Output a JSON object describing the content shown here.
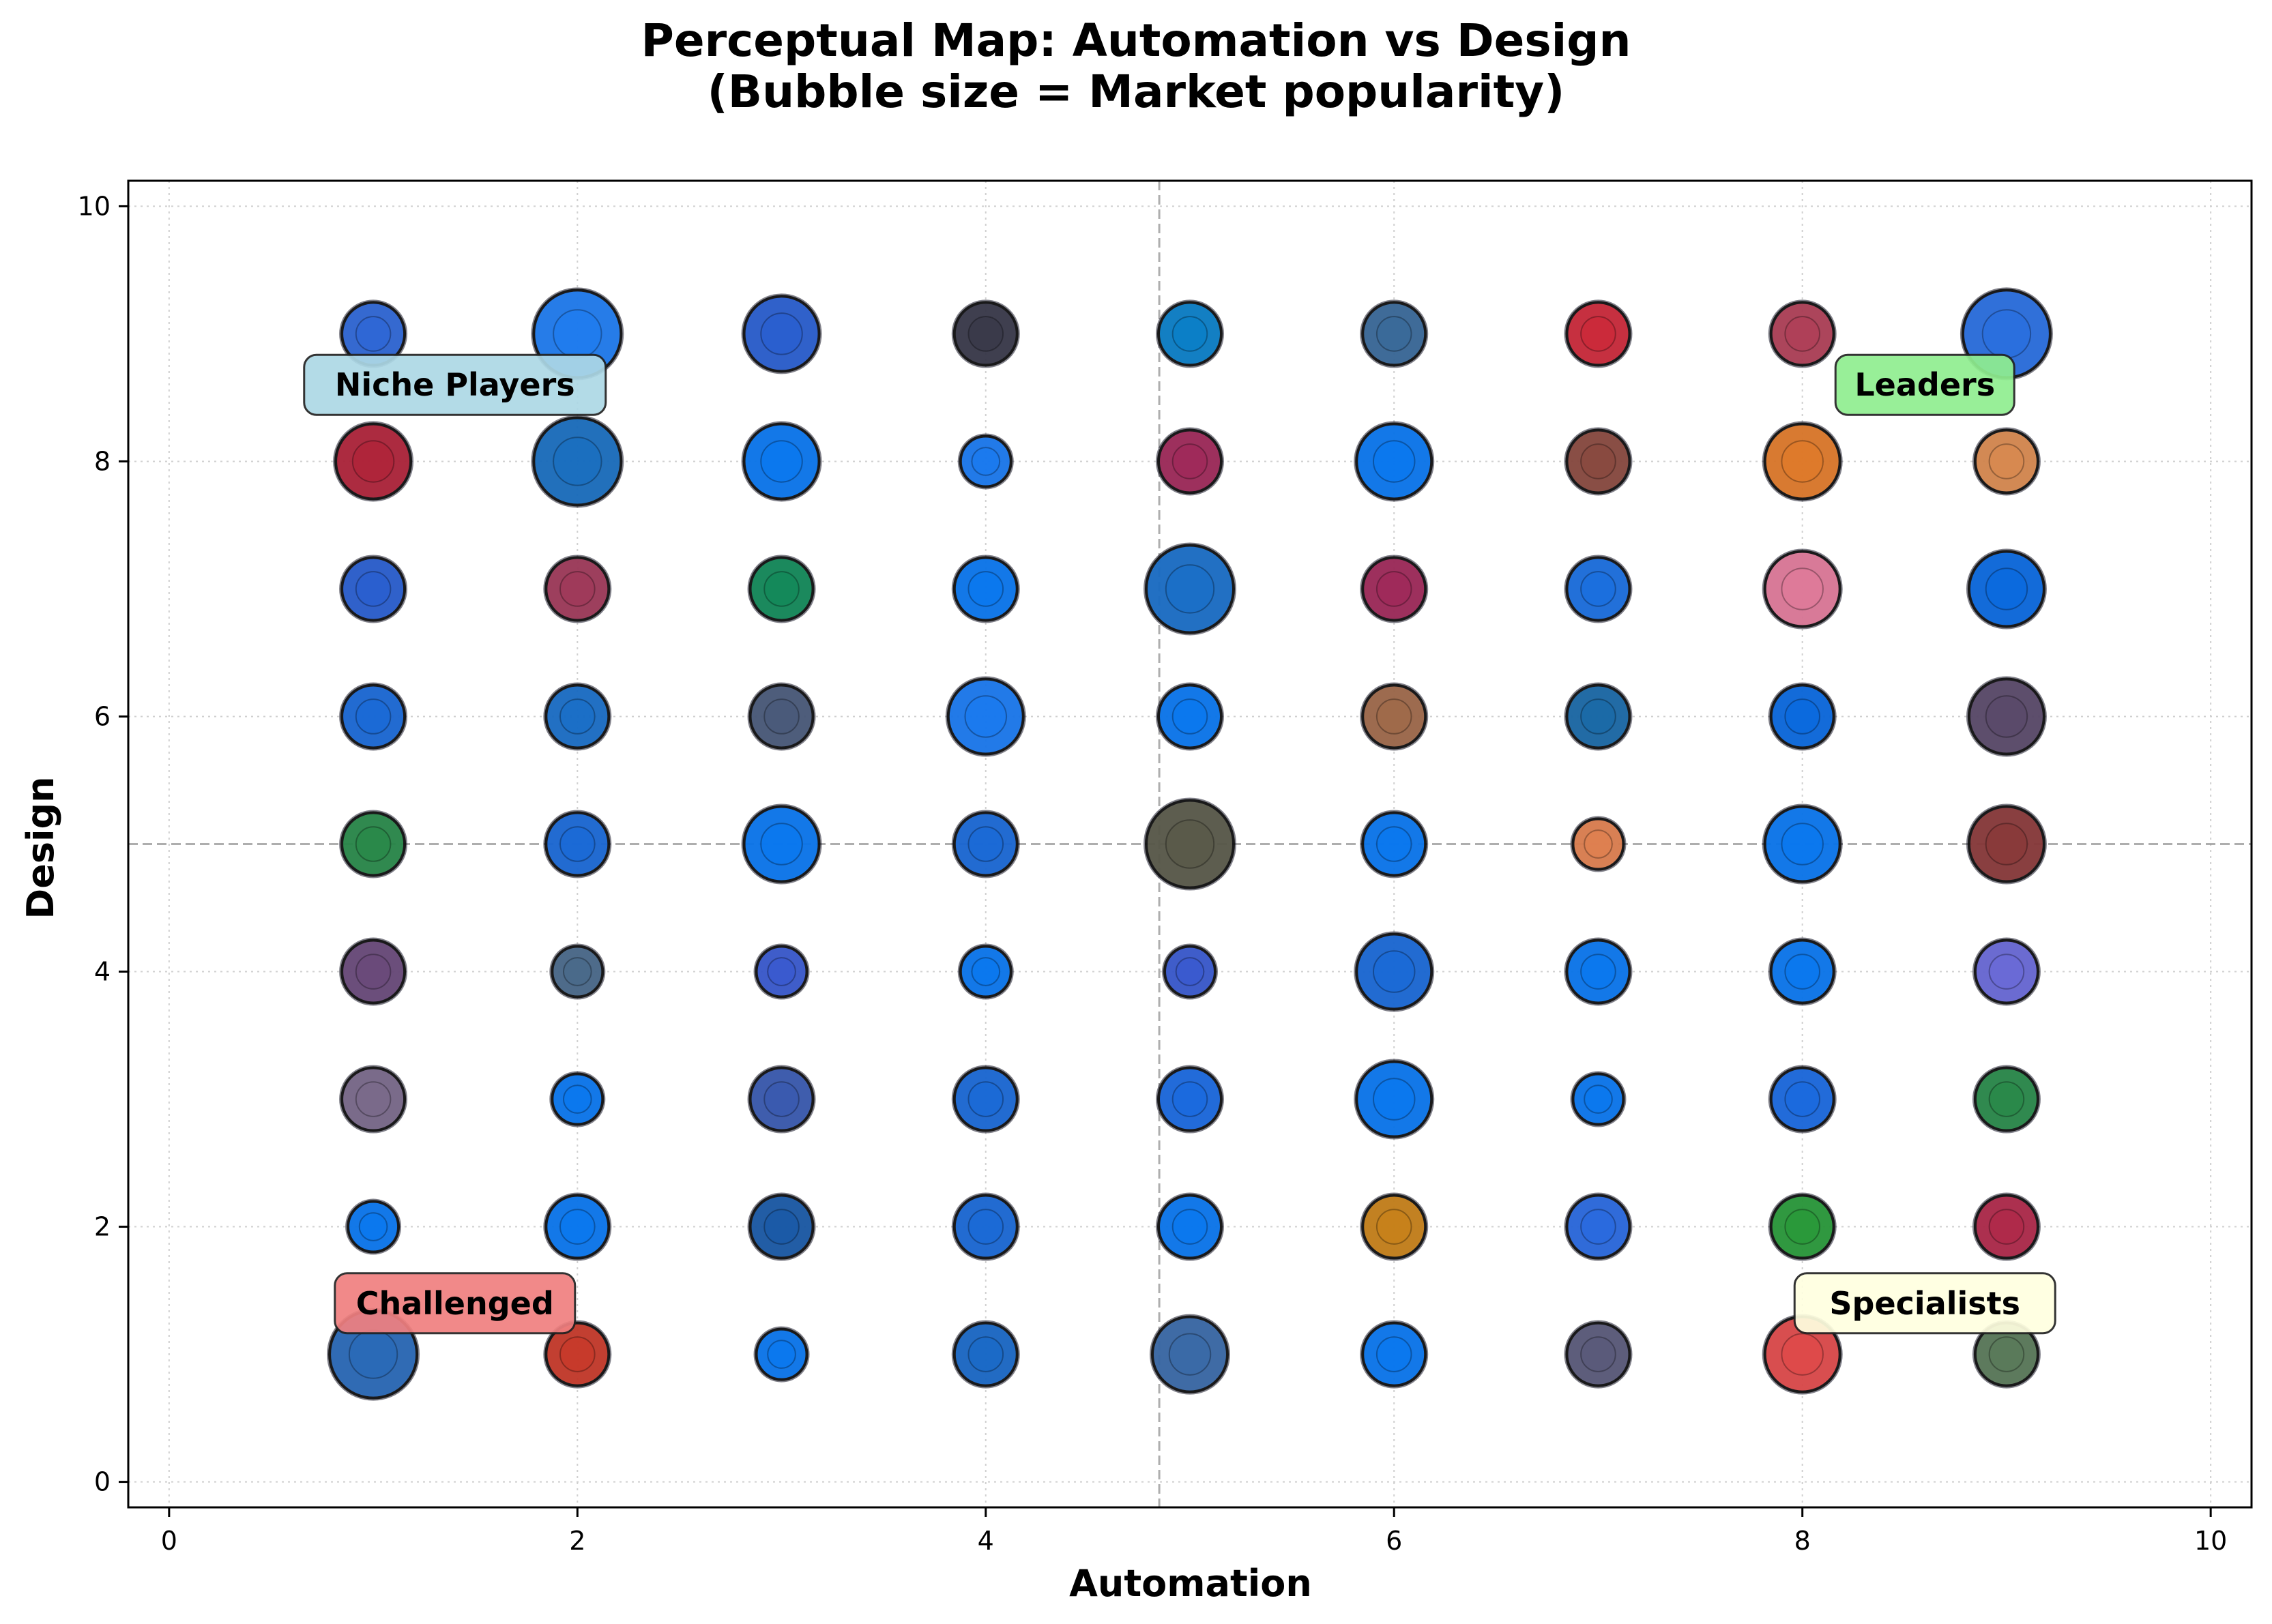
{
  "chart_data": {
    "type": "scatter",
    "title_line1": "Perceptual Map: Automation vs Design",
    "title_line2": "(Bubble size = Market popularity)",
    "xlabel": "Automation",
    "ylabel": "Design",
    "xlim": [
      -0.2,
      10.2
    ],
    "ylim": [
      -0.2,
      10.2
    ],
    "xticks": [
      "0",
      "2",
      "4",
      "6",
      "8",
      "10"
    ],
    "yticks": [
      "0",
      "2",
      "4",
      "6",
      "8",
      "10"
    ],
    "grid": true,
    "reference_lines": {
      "x": 4.85,
      "y": 5
    },
    "quadrant_labels": [
      {
        "text": "Niche Players",
        "x": 1.4,
        "y": 8.6,
        "color": "#add8e6"
      },
      {
        "text": "Leaders",
        "x": 8.6,
        "y": 8.6,
        "color": "#90ee90"
      },
      {
        "text": "Challenged",
        "x": 1.4,
        "y": 1.4,
        "color": "#f08080"
      },
      {
        "text": "Specialists",
        "x": 8.6,
        "y": 1.4,
        "color": "#ffffe0"
      }
    ],
    "points": [
      {
        "x": 1,
        "y": 9,
        "size": 2,
        "color": "#2f67d6"
      },
      {
        "x": 2,
        "y": 9,
        "size": 4,
        "color": "#1f7cf0"
      },
      {
        "x": 3,
        "y": 9,
        "size": 3,
        "color": "#2a5fd0"
      },
      {
        "x": 4,
        "y": 9,
        "size": 2,
        "color": "#3a3a4a"
      },
      {
        "x": 5,
        "y": 9,
        "size": 2,
        "color": "#0a7fc8"
      },
      {
        "x": 6,
        "y": 9,
        "size": 2,
        "color": "#3a6a9a"
      },
      {
        "x": 7,
        "y": 9,
        "size": 2,
        "color": "#cc2a3a"
      },
      {
        "x": 8,
        "y": 9,
        "size": 2,
        "color": "#b04058"
      },
      {
        "x": 9,
        "y": 9,
        "size": 4,
        "color": "#2a6fe0"
      },
      {
        "x": 1,
        "y": 8,
        "size": 3,
        "color": "#b0243a"
      },
      {
        "x": 2,
        "y": 8,
        "size": 4,
        "color": "#1a6fc0"
      },
      {
        "x": 3,
        "y": 8,
        "size": 3,
        "color": "#0a78f0"
      },
      {
        "x": 4,
        "y": 8,
        "size": 1,
        "color": "#1a7af0"
      },
      {
        "x": 5,
        "y": 8,
        "size": 2,
        "color": "#a02a5a"
      },
      {
        "x": 6,
        "y": 8,
        "size": 3,
        "color": "#0a78f0"
      },
      {
        "x": 7,
        "y": 8,
        "size": 2,
        "color": "#8a4a40"
      },
      {
        "x": 8,
        "y": 8,
        "size": 3,
        "color": "#e07a2a"
      },
      {
        "x": 9,
        "y": 8,
        "size": 2,
        "color": "#d98a50"
      },
      {
        "x": 1,
        "y": 7,
        "size": 2,
        "color": "#2a5fd0"
      },
      {
        "x": 2,
        "y": 7,
        "size": 2,
        "color": "#a03a5a"
      },
      {
        "x": 3,
        "y": 7,
        "size": 2,
        "color": "#138a5a"
      },
      {
        "x": 4,
        "y": 7,
        "size": 2,
        "color": "#0a78f0"
      },
      {
        "x": 5,
        "y": 7,
        "size": 4,
        "color": "#1a6fc8"
      },
      {
        "x": 6,
        "y": 7,
        "size": 2,
        "color": "#a02a5a"
      },
      {
        "x": 7,
        "y": 7,
        "size": 2,
        "color": "#1a6fe0"
      },
      {
        "x": 8,
        "y": 7,
        "size": 3,
        "color": "#e07a9a"
      },
      {
        "x": 9,
        "y": 7,
        "size": 3,
        "color": "#0a6ae0"
      },
      {
        "x": 1,
        "y": 6,
        "size": 2,
        "color": "#1a6ad8"
      },
      {
        "x": 2,
        "y": 6,
        "size": 2,
        "color": "#1a6fc8"
      },
      {
        "x": 3,
        "y": 6,
        "size": 2,
        "color": "#4a5a7a"
      },
      {
        "x": 4,
        "y": 6,
        "size": 3,
        "color": "#1a7af0"
      },
      {
        "x": 5,
        "y": 6,
        "size": 2,
        "color": "#0a78f0"
      },
      {
        "x": 6,
        "y": 6,
        "size": 2,
        "color": "#a06a4a"
      },
      {
        "x": 7,
        "y": 6,
        "size": 2,
        "color": "#1a6aa8"
      },
      {
        "x": 8,
        "y": 6,
        "size": 2,
        "color": "#0a6ae0"
      },
      {
        "x": 9,
        "y": 6,
        "size": 3,
        "color": "#5a4a6a"
      },
      {
        "x": 1,
        "y": 5,
        "size": 2,
        "color": "#2a8a4a"
      },
      {
        "x": 2,
        "y": 5,
        "size": 2,
        "color": "#1a6ad8"
      },
      {
        "x": 3,
        "y": 5,
        "size": 3,
        "color": "#0a78f0"
      },
      {
        "x": 4,
        "y": 5,
        "size": 2,
        "color": "#1a6ad8"
      },
      {
        "x": 5,
        "y": 5,
        "size": 4,
        "color": "#5a5a4a"
      },
      {
        "x": 6,
        "y": 5,
        "size": 2,
        "color": "#0a78f0"
      },
      {
        "x": 7,
        "y": 5,
        "size": 1,
        "color": "#e08050"
      },
      {
        "x": 8,
        "y": 5,
        "size": 3,
        "color": "#0a78f0"
      },
      {
        "x": 9,
        "y": 5,
        "size": 3,
        "color": "#8a3a3a"
      },
      {
        "x": 1,
        "y": 4,
        "size": 2,
        "color": "#6a4a7a"
      },
      {
        "x": 2,
        "y": 4,
        "size": 1,
        "color": "#4a6a8a"
      },
      {
        "x": 3,
        "y": 4,
        "size": 1,
        "color": "#3a5ad0"
      },
      {
        "x": 4,
        "y": 4,
        "size": 1,
        "color": "#0a78f0"
      },
      {
        "x": 5,
        "y": 4,
        "size": 1,
        "color": "#3a5ad0"
      },
      {
        "x": 6,
        "y": 4,
        "size": 3,
        "color": "#1a6ad8"
      },
      {
        "x": 7,
        "y": 4,
        "size": 2,
        "color": "#0a78f0"
      },
      {
        "x": 8,
        "y": 4,
        "size": 2,
        "color": "#0a78f0"
      },
      {
        "x": 9,
        "y": 4,
        "size": 2,
        "color": "#6a6ad8"
      },
      {
        "x": 1,
        "y": 3,
        "size": 2,
        "color": "#7a6a8a"
      },
      {
        "x": 2,
        "y": 3,
        "size": 1,
        "color": "#0a78f0"
      },
      {
        "x": 3,
        "y": 3,
        "size": 2,
        "color": "#3a5ab0"
      },
      {
        "x": 4,
        "y": 3,
        "size": 2,
        "color": "#1a6ad8"
      },
      {
        "x": 5,
        "y": 3,
        "size": 2,
        "color": "#1a6ae0"
      },
      {
        "x": 6,
        "y": 3,
        "size": 3,
        "color": "#0a78f0"
      },
      {
        "x": 7,
        "y": 3,
        "size": 1,
        "color": "#0a78f0"
      },
      {
        "x": 8,
        "y": 3,
        "size": 2,
        "color": "#1a6ae0"
      },
      {
        "x": 9,
        "y": 3,
        "size": 2,
        "color": "#2a8a4a"
      },
      {
        "x": 1,
        "y": 2,
        "size": 1,
        "color": "#0a78f0"
      },
      {
        "x": 2,
        "y": 2,
        "size": 2,
        "color": "#0a78f0"
      },
      {
        "x": 3,
        "y": 2,
        "size": 2,
        "color": "#1a5aa8"
      },
      {
        "x": 4,
        "y": 2,
        "size": 2,
        "color": "#1a6ad8"
      },
      {
        "x": 5,
        "y": 2,
        "size": 2,
        "color": "#0a78f0"
      },
      {
        "x": 6,
        "y": 2,
        "size": 2,
        "color": "#c8821a"
      },
      {
        "x": 7,
        "y": 2,
        "size": 2,
        "color": "#2a6ae0"
      },
      {
        "x": 8,
        "y": 2,
        "size": 2,
        "color": "#2a9a3a"
      },
      {
        "x": 9,
        "y": 2,
        "size": 2,
        "color": "#b02a4a"
      },
      {
        "x": 1,
        "y": 1,
        "size": 4,
        "color": "#2a6ab8"
      },
      {
        "x": 2,
        "y": 1,
        "size": 2,
        "color": "#c83a2a"
      },
      {
        "x": 3,
        "y": 1,
        "size": 1,
        "color": "#0a78f0"
      },
      {
        "x": 4,
        "y": 1,
        "size": 2,
        "color": "#1a6ac8"
      },
      {
        "x": 5,
        "y": 1,
        "size": 3,
        "color": "#3a6aa8"
      },
      {
        "x": 6,
        "y": 1,
        "size": 2,
        "color": "#0a78f0"
      },
      {
        "x": 7,
        "y": 1,
        "size": 2,
        "color": "#5a5a7a"
      },
      {
        "x": 8,
        "y": 1,
        "size": 3,
        "color": "#e04a4a"
      },
      {
        "x": 9,
        "y": 1,
        "size": 2,
        "color": "#5a7a5a"
      }
    ]
  }
}
